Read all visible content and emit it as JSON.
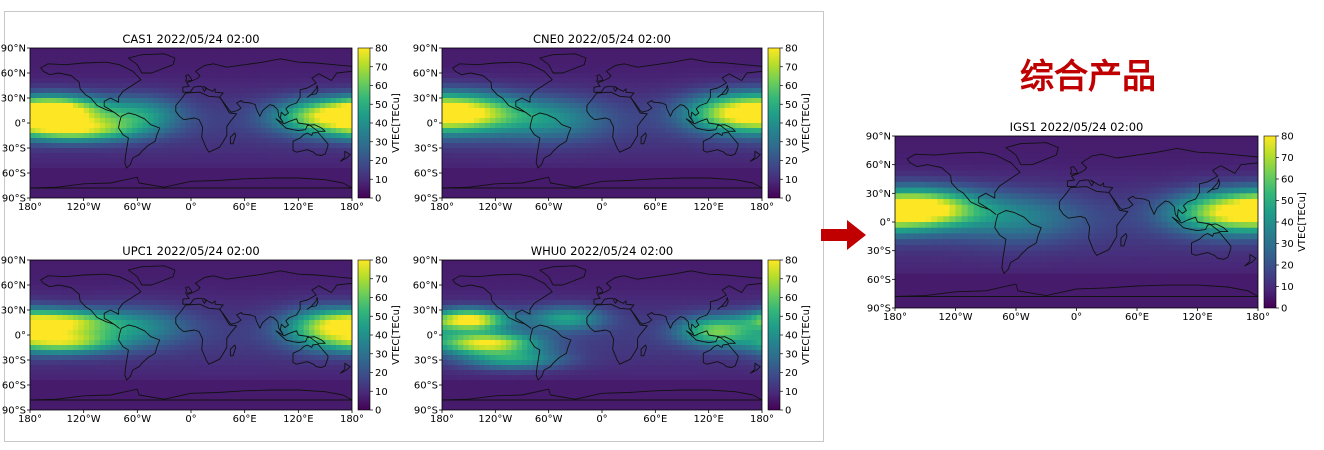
{
  "headline": "综合产品",
  "colors": {
    "accent": "#c00000",
    "arrow": "#c00000",
    "colormap": [
      "#440154",
      "#482878",
      "#3e4989",
      "#31688e",
      "#26828e",
      "#1f9e89",
      "#35b779",
      "#6ece58",
      "#b5de2b",
      "#fde725"
    ]
  },
  "chart_data": [
    {
      "id": "cas1",
      "type": "heatmap",
      "title": "CAS1 2022/05/24 02:00",
      "colorbar_label": "VTEC[TECu]",
      "clim": [
        0,
        80
      ],
      "colorbar_ticks": [
        "0",
        "10",
        "20",
        "30",
        "40",
        "50",
        "60",
        "70",
        "80"
      ],
      "xticks": [
        "180°",
        "120°W",
        "60°W",
        "0°",
        "60°E",
        "120°E",
        "180°"
      ],
      "yticks": [
        "90°N",
        "60°N",
        "30°N",
        "0°",
        "30°S",
        "60°S",
        "90°S"
      ],
      "xlim": [
        -180,
        180
      ],
      "ylim": [
        -90,
        90
      ],
      "features": [
        {
          "lon": -150,
          "lat": 15,
          "peak": 78,
          "spread_lon": 35,
          "spread_lat": 12
        },
        {
          "lon": -130,
          "lat": -8,
          "peak": 62,
          "spread_lon": 45,
          "spread_lat": 10
        },
        {
          "lon": 150,
          "lat": 8,
          "peak": 62,
          "spread_lon": 40,
          "spread_lat": 14
        },
        {
          "lon": -60,
          "lat": 10,
          "peak": 38,
          "spread_lon": 35,
          "spread_lat": 15
        }
      ]
    },
    {
      "id": "cne0",
      "type": "heatmap",
      "title": "CNE0 2022/05/24 02:00",
      "colorbar_label": "VTEC[TECu]",
      "clim": [
        0,
        80
      ],
      "colorbar_ticks": [
        "0",
        "10",
        "20",
        "30",
        "40",
        "50",
        "60",
        "70",
        "80"
      ],
      "xticks": [
        "180°",
        "120°W",
        "60°W",
        "0°",
        "60°E",
        "120°E",
        "180°"
      ],
      "yticks": [
        "90°N",
        "60°N",
        "30°N",
        "0°",
        "30°S",
        "60°S",
        "90°S"
      ],
      "xlim": [
        -180,
        180
      ],
      "ylim": [
        -90,
        90
      ],
      "features": [
        {
          "lon": -150,
          "lat": 12,
          "peak": 62,
          "spread_lon": 40,
          "spread_lat": 16
        },
        {
          "lon": 150,
          "lat": 12,
          "peak": 62,
          "spread_lon": 40,
          "spread_lat": 16
        },
        {
          "lon": -60,
          "lat": 5,
          "peak": 32,
          "spread_lon": 45,
          "spread_lat": 18
        }
      ]
    },
    {
      "id": "upc1",
      "type": "heatmap",
      "title": "UPC1 2022/05/24 02:00",
      "colorbar_label": "VTEC[TECu]",
      "clim": [
        0,
        80
      ],
      "colorbar_ticks": [
        "0",
        "10",
        "20",
        "30",
        "40",
        "50",
        "60",
        "70",
        "80"
      ],
      "xticks": [
        "180°",
        "120°W",
        "60°W",
        "0°",
        "60°E",
        "120°E",
        "180°"
      ],
      "yticks": [
        "90°N",
        "60°N",
        "30°N",
        "0°",
        "30°S",
        "60°S",
        "90°S"
      ],
      "xlim": [
        -180,
        180
      ],
      "ylim": [
        -90,
        90
      ],
      "features": [
        {
          "lon": -145,
          "lat": 16,
          "peak": 62,
          "spread_lon": 40,
          "spread_lat": 10
        },
        {
          "lon": -140,
          "lat": -8,
          "peak": 60,
          "spread_lon": 40,
          "spread_lat": 10
        },
        {
          "lon": 155,
          "lat": 8,
          "peak": 58,
          "spread_lon": 35,
          "spread_lat": 16
        },
        {
          "lon": -60,
          "lat": 10,
          "peak": 30,
          "spread_lon": 40,
          "spread_lat": 16
        }
      ]
    },
    {
      "id": "whu0",
      "type": "heatmap",
      "title": "WHU0 2022/05/24 02:00",
      "colorbar_label": "VTEC[TECu]",
      "clim": [
        0,
        80
      ],
      "colorbar_ticks": [
        "0",
        "10",
        "20",
        "30",
        "40",
        "50",
        "60",
        "70",
        "80"
      ],
      "xticks": [
        "180°",
        "120°W",
        "60°W",
        "0°",
        "60°E",
        "120°E",
        "180°"
      ],
      "yticks": [
        "90°N",
        "60°N",
        "30°N",
        "0°",
        "30°S",
        "60°S",
        "90°S"
      ],
      "xlim": [
        -180,
        180
      ],
      "ylim": [
        -90,
        90
      ],
      "features": [
        {
          "lon": -150,
          "lat": 18,
          "peak": 78,
          "spread_lon": 30,
          "spread_lat": 9
        },
        {
          "lon": -130,
          "lat": -10,
          "peak": 72,
          "spread_lon": 40,
          "spread_lat": 9
        },
        {
          "lon": -100,
          "lat": -30,
          "peak": 40,
          "spread_lon": 40,
          "spread_lat": 8
        },
        {
          "lon": 130,
          "lat": 5,
          "peak": 55,
          "spread_lon": 30,
          "spread_lat": 12
        },
        {
          "lon": -40,
          "lat": 20,
          "peak": 40,
          "spread_lon": 30,
          "spread_lat": 10
        }
      ]
    },
    {
      "id": "igs1",
      "type": "heatmap",
      "title": "IGS1 2022/05/24 02:00",
      "colorbar_label": "VTEC[TECu]",
      "clim": [
        0,
        80
      ],
      "colorbar_ticks": [
        "0",
        "10",
        "20",
        "30",
        "40",
        "50",
        "60",
        "70",
        "80"
      ],
      "xticks": [
        "180°",
        "120°W",
        "60°W",
        "0°",
        "60°E",
        "120°E",
        "180°"
      ],
      "yticks": [
        "90°N",
        "60°N",
        "30°N",
        "0°",
        "30°S",
        "60°S",
        "90°S"
      ],
      "xlim": [
        -180,
        180
      ],
      "ylim": [
        -90,
        90
      ],
      "features": [
        {
          "lon": -150,
          "lat": 14,
          "peak": 70,
          "spread_lon": 38,
          "spread_lat": 14
        },
        {
          "lon": 150,
          "lat": 10,
          "peak": 62,
          "spread_lon": 40,
          "spread_lat": 15
        },
        {
          "lon": -60,
          "lat": 5,
          "peak": 28,
          "spread_lon": 45,
          "spread_lat": 18
        }
      ]
    }
  ]
}
